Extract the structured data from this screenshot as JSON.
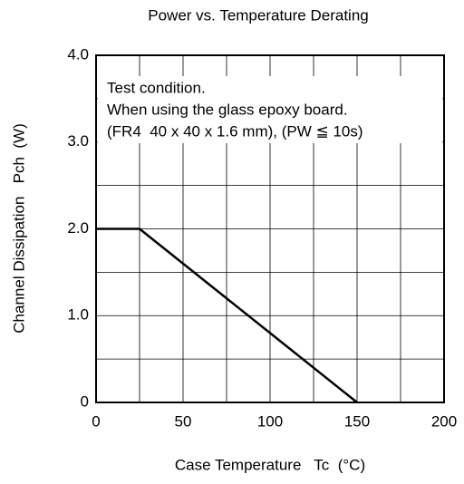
{
  "chart_data": {
    "type": "line",
    "title": "Power vs. Temperature Derating",
    "xlabel": "Case Temperature   Tc  (°C)",
    "ylabel": "Channel Dissipation   Pch  (W)",
    "annotations": [
      "Test condition.",
      "When using the glass epoxy board.",
      "(FR4  40 x 40 x 1.6 mm), (PW ≦ 10s)"
    ],
    "x": [
      0,
      25,
      150
    ],
    "series": [
      {
        "name": null,
        "color": "#000000",
        "values": [
          2,
          2,
          0
        ]
      }
    ],
    "xlim": [
      0,
      200
    ],
    "xticks": [
      0,
      50,
      100,
      150,
      200
    ],
    "xminor": [
      25,
      75,
      125,
      175
    ],
    "ylim": [
      0,
      4
    ],
    "yticks": [
      0,
      {
        "value": 1,
        "label": "1.0"
      },
      {
        "value": 2,
        "label": "2.0"
      },
      {
        "value": 3,
        "label": "3.0"
      },
      {
        "value": 4,
        "label": "4.0"
      }
    ],
    "yminor": [
      0.5,
      1.5,
      2.5,
      3.5
    ],
    "grid": true
  }
}
